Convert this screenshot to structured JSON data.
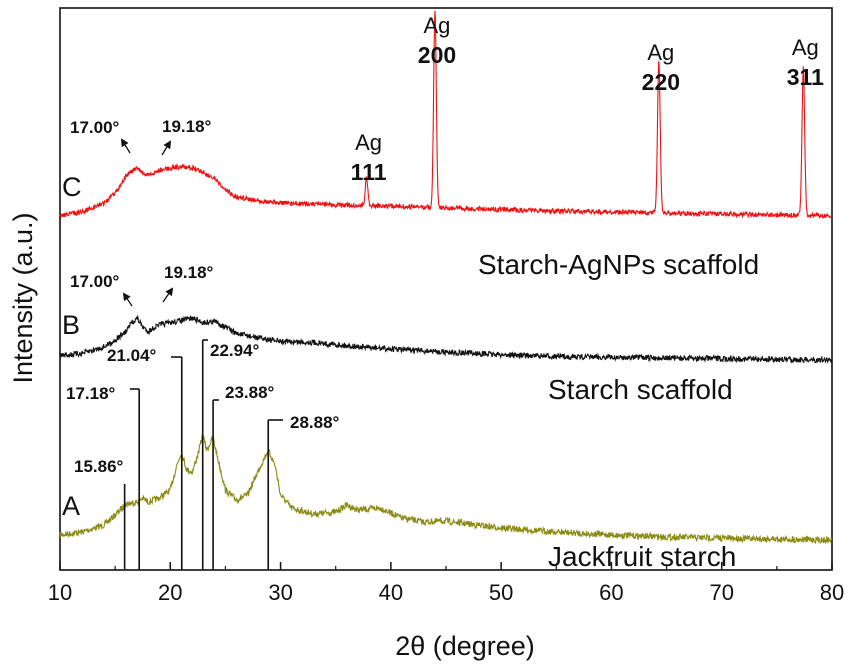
{
  "chart_data": {
    "type": "line",
    "xlabel": "2θ (degree)",
    "ylabel": "Intensity (a.u.)",
    "xlim": [
      10,
      80
    ],
    "xticks": [
      "10",
      "20",
      "30",
      "40",
      "50",
      "60",
      "70",
      "80"
    ],
    "y_ticks_shown": false,
    "grid": false,
    "series": [
      {
        "id": "A",
        "letter": "A",
        "name": "Jackfruit starch",
        "color": "#8b8b14",
        "profile": [
          [
            10,
            0.05
          ],
          [
            12,
            0.08
          ],
          [
            14,
            0.15
          ],
          [
            15,
            0.25
          ],
          [
            16,
            0.36
          ],
          [
            17,
            0.38
          ],
          [
            17.5,
            0.42
          ],
          [
            18,
            0.38
          ],
          [
            19,
            0.42
          ],
          [
            20,
            0.5
          ],
          [
            20.6,
            0.75
          ],
          [
            21,
            0.88
          ],
          [
            21.5,
            0.7
          ],
          [
            22,
            0.68
          ],
          [
            22.5,
            0.85
          ],
          [
            22.94,
            1.05
          ],
          [
            23.3,
            0.9
          ],
          [
            23.88,
            1.02
          ],
          [
            24.3,
            0.82
          ],
          [
            25,
            0.5
          ],
          [
            26,
            0.4
          ],
          [
            27,
            0.45
          ],
          [
            28,
            0.7
          ],
          [
            28.88,
            0.9
          ],
          [
            29.5,
            0.75
          ],
          [
            30,
            0.45
          ],
          [
            31,
            0.32
          ],
          [
            33,
            0.26
          ],
          [
            35,
            0.28
          ],
          [
            36,
            0.35
          ],
          [
            37,
            0.3
          ],
          [
            39,
            0.32
          ],
          [
            41,
            0.22
          ],
          [
            43,
            0.18
          ],
          [
            45,
            0.19
          ],
          [
            47,
            0.16
          ],
          [
            50,
            0.12
          ],
          [
            55,
            0.08
          ],
          [
            60,
            0.05
          ],
          [
            65,
            0.03
          ],
          [
            70,
            0.02
          ],
          [
            75,
            0.01
          ],
          [
            80,
            0.0
          ]
        ],
        "peak_labels": [
          {
            "x": 15.86,
            "text": "15.86°"
          },
          {
            "x": 17.18,
            "text": "17.18°"
          },
          {
            "x": 21.04,
            "text": "21.04°"
          },
          {
            "x": 22.94,
            "text": "22.94°"
          },
          {
            "x": 23.88,
            "text": "23.88°"
          },
          {
            "x": 28.88,
            "text": "28.88°"
          }
        ]
      },
      {
        "id": "B",
        "letter": "B",
        "name": "Starch scaffold",
        "color": "#111111",
        "profile": [
          [
            10,
            0.1
          ],
          [
            12,
            0.15
          ],
          [
            14,
            0.3
          ],
          [
            15,
            0.45
          ],
          [
            16,
            0.65
          ],
          [
            16.5,
            0.85
          ],
          [
            17,
            0.95
          ],
          [
            17.5,
            0.75
          ],
          [
            18,
            0.65
          ],
          [
            19,
            0.8
          ],
          [
            20,
            0.85
          ],
          [
            21,
            0.9
          ],
          [
            22,
            0.95
          ],
          [
            23,
            0.85
          ],
          [
            24,
            0.88
          ],
          [
            25,
            0.75
          ],
          [
            26,
            0.6
          ],
          [
            28,
            0.5
          ],
          [
            30,
            0.42
          ],
          [
            33,
            0.4
          ],
          [
            35,
            0.35
          ],
          [
            38,
            0.28
          ],
          [
            40,
            0.25
          ],
          [
            45,
            0.18
          ],
          [
            50,
            0.12
          ],
          [
            55,
            0.08
          ],
          [
            60,
            0.06
          ],
          [
            70,
            0.03
          ],
          [
            80,
            0.0
          ]
        ],
        "peak_labels": [
          {
            "x": 17.0,
            "text": "17.00°"
          },
          {
            "x": 19.18,
            "text": "19.18°"
          }
        ]
      },
      {
        "id": "C",
        "letter": "C",
        "name": "Starch-AgNPs scaffold",
        "color": "#ee1111",
        "profile": [
          [
            10,
            0.05
          ],
          [
            12,
            0.12
          ],
          [
            14,
            0.3
          ],
          [
            15,
            0.5
          ],
          [
            16,
            0.85
          ],
          [
            17,
            1.0
          ],
          [
            17.5,
            0.9
          ],
          [
            18,
            0.85
          ],
          [
            19,
            0.95
          ],
          [
            20,
            1.0
          ],
          [
            21,
            1.02
          ],
          [
            22,
            1.0
          ],
          [
            23,
            0.92
          ],
          [
            24,
            0.78
          ],
          [
            25,
            0.55
          ],
          [
            26,
            0.42
          ],
          [
            28,
            0.35
          ],
          [
            30,
            0.3
          ],
          [
            32,
            0.28
          ],
          [
            35,
            0.26
          ],
          [
            40,
            0.24
          ],
          [
            45,
            0.2
          ],
          [
            50,
            0.17
          ],
          [
            55,
            0.14
          ],
          [
            60,
            0.12
          ],
          [
            65,
            0.1
          ],
          [
            70,
            0.08
          ],
          [
            75,
            0.06
          ],
          [
            80,
            0.05
          ]
        ],
        "ag_peaks": [
          {
            "x": 37.8,
            "height": 0.55,
            "ag": "Ag",
            "hkl": "111"
          },
          {
            "x": 44.0,
            "height": 3.95,
            "ag": "Ag",
            "hkl": "200"
          },
          {
            "x": 64.3,
            "height": 3.05,
            "ag": "Ag",
            "hkl": "220"
          },
          {
            "x": 77.4,
            "height": 2.95,
            "ag": "Ag",
            "hkl": "311"
          }
        ],
        "peak_labels": [
          {
            "x": 17.0,
            "text": "17.00°"
          },
          {
            "x": 19.18,
            "text": "19.18°"
          }
        ]
      }
    ]
  }
}
